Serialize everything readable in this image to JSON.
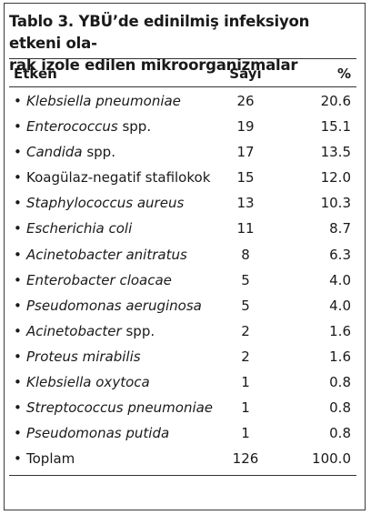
{
  "title": "Tablo 3. YBÜ’de edinilmiş infeksiyon etkeni ola- rak izole edilen mikroorganizmalar",
  "title_lines": [
    "Tablo 3. YBÜ’de edinilmiş infeksiyon etkeni ola-",
    "rak izole edilen mikroorganizmalar"
  ],
  "columns": [
    "Etken",
    "Sayı",
    "%"
  ],
  "bullet": "•",
  "rows": [
    {
      "name": "Klebsiella pneumoniae",
      "suffix": "",
      "italic": true,
      "count": "26",
      "pct": "20.6"
    },
    {
      "name": "Enterococcus",
      "suffix": " spp.",
      "italic": true,
      "count": "19",
      "pct": "15.1"
    },
    {
      "name": "Candida",
      "suffix": " spp.",
      "italic": true,
      "count": "17",
      "pct": "13.5"
    },
    {
      "name": "Koagülaz-negatif stafilokok",
      "suffix": "",
      "italic": false,
      "count": "15",
      "pct": "12.0"
    },
    {
      "name": "Staphylococcus aureus",
      "suffix": "",
      "italic": true,
      "count": "13",
      "pct": "10.3"
    },
    {
      "name": "Escherichia coli",
      "suffix": "",
      "italic": true,
      "count": "11",
      "pct": "8.7"
    },
    {
      "name": "Acinetobacter anitratus",
      "suffix": "",
      "italic": true,
      "count": "8",
      "pct": "6.3"
    },
    {
      "name": "Enterobacter cloacae",
      "suffix": "",
      "italic": true,
      "count": "5",
      "pct": "4.0"
    },
    {
      "name": "Pseudomonas aeruginosa",
      "suffix": "",
      "italic": true,
      "count": "5",
      "pct": "4.0"
    },
    {
      "name": "Acinetobacter",
      "suffix": " spp.",
      "italic": true,
      "count": "2",
      "pct": "1.6"
    },
    {
      "name": "Proteus mirabilis",
      "suffix": "",
      "italic": true,
      "count": "2",
      "pct": "1.6"
    },
    {
      "name": "Klebsiella oxytoca",
      "suffix": "",
      "italic": true,
      "count": "1",
      "pct": "0.8"
    },
    {
      "name": "Streptococcus pneumoniae",
      "suffix": "",
      "italic": true,
      "count": "1",
      "pct": "0.8"
    },
    {
      "name": "Pseudomonas putida",
      "suffix": "",
      "italic": true,
      "count": "1",
      "pct": "0.8"
    },
    {
      "name": "Toplam",
      "suffix": "",
      "italic": false,
      "count": "126",
      "pct": "100.0"
    }
  ]
}
